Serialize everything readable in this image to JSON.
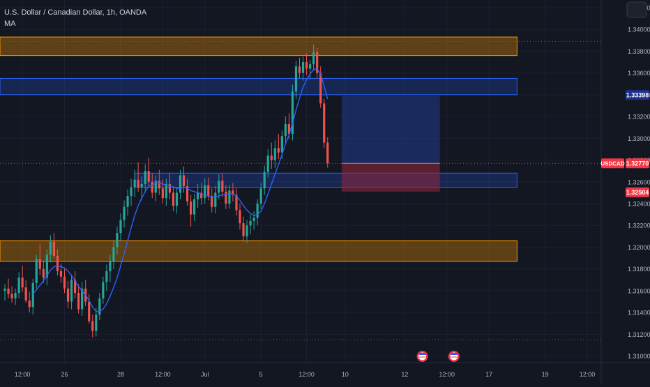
{
  "header": {
    "title": "U.S. Dollar / Canadian Dollar, 1h, OANDA",
    "indicator": "MA"
  },
  "chart_data": {
    "type": "candlestick",
    "symbol": "USDCAD",
    "ylim": [
      1.3094,
      1.3427
    ],
    "y_ticks": [
      "1.31000",
      "1.31200",
      "1.31400",
      "1.31600",
      "1.31800",
      "1.32000",
      "1.32200",
      "1.32400",
      "1.32600",
      "1.32800",
      "1.33000",
      "1.33200",
      "1.33400",
      "1.33600",
      "1.33800",
      "1.34000",
      "1.34200"
    ],
    "x_ticks": [
      {
        "label": "12:00",
        "bar": 5
      },
      {
        "label": "26",
        "bar": 17
      },
      {
        "label": "28",
        "bar": 33
      },
      {
        "label": "12:00",
        "bar": 45
      },
      {
        "label": "Jul",
        "bar": 57
      },
      {
        "label": "5",
        "bar": 73
      },
      {
        "label": "12:00",
        "bar": 86
      },
      {
        "label": "10",
        "bar": 97
      },
      {
        "label": "12",
        "bar": 114
      },
      {
        "label": "12:00",
        "bar": 126
      },
      {
        "label": "17",
        "bar": 138
      },
      {
        "label": "19",
        "bar": 154
      },
      {
        "label": "12:00",
        "bar": 166
      }
    ],
    "price_labels": [
      {
        "text": "1.33398",
        "value": 1.33398,
        "color": "#1e2f8c"
      },
      {
        "text": "USDCAD",
        "value": 1.3277,
        "color": "#f23645"
      },
      {
        "text": "1.32770",
        "value": 1.3277,
        "color": "#f23645"
      },
      {
        "text": "1.32504",
        "value": 1.32504,
        "color": "#f23645"
      }
    ],
    "zones": [
      {
        "kind": "supply",
        "from": 1.3376,
        "to": 1.3393,
        "start_bar": 0,
        "end_bar": 146,
        "color": "#ff9800"
      },
      {
        "kind": "demand",
        "from": 1.334,
        "to": 1.3355,
        "start_bar": 0,
        "end_bar": 146,
        "color": "#2962ff"
      },
      {
        "kind": "demand",
        "from": 1.3255,
        "to": 1.3268,
        "start_bar": 37,
        "end_bar": 146,
        "color": "#2962ff"
      },
      {
        "kind": "supply",
        "from": 1.3187,
        "to": 1.3206,
        "start_bar": 0,
        "end_bar": 146,
        "color": "#ff9800"
      }
    ],
    "position": {
      "entry": 1.3277,
      "target": 1.3339,
      "stop": 1.3251,
      "start_bar": 96,
      "end_bar": 124
    },
    "dotted_levels": [
      1.3389,
      1.3115
    ],
    "events_at_bars": [
      119,
      128
    ],
    "candles": [
      [
        1.316,
        1.3166,
        1.3151,
        1.3162
      ],
      [
        1.3162,
        1.3171,
        1.3153,
        1.3157
      ],
      [
        1.3157,
        1.3164,
        1.3149,
        1.3153
      ],
      [
        1.3153,
        1.3162,
        1.3147,
        1.3158
      ],
      [
        1.3158,
        1.3177,
        1.3153,
        1.3172
      ],
      [
        1.3172,
        1.3183,
        1.3159,
        1.3163
      ],
      [
        1.3163,
        1.317,
        1.3149,
        1.3151
      ],
      [
        1.3151,
        1.3159,
        1.314,
        1.3145
      ],
      [
        1.3145,
        1.3171,
        1.3138,
        1.3167
      ],
      [
        1.3167,
        1.3193,
        1.3162,
        1.3189
      ],
      [
        1.3189,
        1.3203,
        1.3174,
        1.318
      ],
      [
        1.318,
        1.3187,
        1.3167,
        1.3172
      ],
      [
        1.3172,
        1.3198,
        1.3165,
        1.3193
      ],
      [
        1.3193,
        1.3211,
        1.3186,
        1.3205
      ],
      [
        1.3205,
        1.3213,
        1.319,
        1.3192
      ],
      [
        1.3192,
        1.3198,
        1.3174,
        1.3178
      ],
      [
        1.3178,
        1.3185,
        1.3167,
        1.3173
      ],
      [
        1.3173,
        1.318,
        1.3158,
        1.3162
      ],
      [
        1.3162,
        1.3169,
        1.3144,
        1.315
      ],
      [
        1.315,
        1.3175,
        1.3143,
        1.317
      ],
      [
        1.317,
        1.3178,
        1.3153,
        1.3158
      ],
      [
        1.3158,
        1.3166,
        1.3139,
        1.3143
      ],
      [
        1.3143,
        1.3168,
        1.3137,
        1.3162
      ],
      [
        1.3162,
        1.317,
        1.3146,
        1.315
      ],
      [
        1.315,
        1.3157,
        1.313,
        1.3132
      ],
      [
        1.3132,
        1.3138,
        1.3117,
        1.3123
      ],
      [
        1.3123,
        1.3144,
        1.3118,
        1.3138
      ],
      [
        1.3138,
        1.3158,
        1.3133,
        1.3153
      ],
      [
        1.3153,
        1.3173,
        1.3148,
        1.3168
      ],
      [
        1.3168,
        1.3184,
        1.316,
        1.3178
      ],
      [
        1.3178,
        1.3193,
        1.3168,
        1.3187
      ],
      [
        1.3187,
        1.3206,
        1.318,
        1.32
      ],
      [
        1.32,
        1.3219,
        1.3193,
        1.3213
      ],
      [
        1.3213,
        1.3231,
        1.3206,
        1.3225
      ],
      [
        1.3225,
        1.3243,
        1.3218,
        1.3237
      ],
      [
        1.3237,
        1.3253,
        1.3229,
        1.3247
      ],
      [
        1.3247,
        1.3263,
        1.3238,
        1.3255
      ],
      [
        1.3255,
        1.3271,
        1.3246,
        1.3262
      ],
      [
        1.3262,
        1.3278,
        1.3251,
        1.3255
      ],
      [
        1.3255,
        1.3265,
        1.3243,
        1.3258
      ],
      [
        1.3258,
        1.3276,
        1.325,
        1.327
      ],
      [
        1.327,
        1.3282,
        1.3255,
        1.326
      ],
      [
        1.326,
        1.3268,
        1.3245,
        1.325
      ],
      [
        1.325,
        1.3266,
        1.3242,
        1.3261
      ],
      [
        1.3261,
        1.3271,
        1.3248,
        1.3254
      ],
      [
        1.3254,
        1.3262,
        1.324,
        1.3245
      ],
      [
        1.3245,
        1.3263,
        1.3238,
        1.3258
      ],
      [
        1.3258,
        1.3268,
        1.3244,
        1.325
      ],
      [
        1.325,
        1.3256,
        1.3233,
        1.3238
      ],
      [
        1.3238,
        1.3255,
        1.3231,
        1.325
      ],
      [
        1.325,
        1.3271,
        1.3244,
        1.3266
      ],
      [
        1.3266,
        1.3274,
        1.325,
        1.3256
      ],
      [
        1.3256,
        1.3263,
        1.3238,
        1.3242
      ],
      [
        1.3242,
        1.3248,
        1.3219,
        1.323
      ],
      [
        1.323,
        1.3249,
        1.3224,
        1.3244
      ],
      [
        1.3244,
        1.3258,
        1.3236,
        1.325
      ],
      [
        1.325,
        1.3259,
        1.3239,
        1.3245
      ],
      [
        1.3245,
        1.3263,
        1.324,
        1.3257
      ],
      [
        1.3257,
        1.3264,
        1.3243,
        1.3247
      ],
      [
        1.3247,
        1.3254,
        1.3232,
        1.3237
      ],
      [
        1.3237,
        1.3256,
        1.3231,
        1.325
      ],
      [
        1.325,
        1.3267,
        1.3244,
        1.3261
      ],
      [
        1.3261,
        1.3268,
        1.3246,
        1.3251
      ],
      [
        1.3251,
        1.3257,
        1.3235,
        1.324
      ],
      [
        1.324,
        1.3257,
        1.3235,
        1.3252
      ],
      [
        1.3252,
        1.3259,
        1.3242,
        1.3248
      ],
      [
        1.3248,
        1.3254,
        1.3229,
        1.3234
      ],
      [
        1.3234,
        1.324,
        1.3216,
        1.3222
      ],
      [
        1.3222,
        1.3228,
        1.3205,
        1.321
      ],
      [
        1.321,
        1.3225,
        1.3204,
        1.322
      ],
      [
        1.322,
        1.323,
        1.3212,
        1.3224
      ],
      [
        1.3224,
        1.3233,
        1.3216,
        1.3227
      ],
      [
        1.3227,
        1.3244,
        1.322,
        1.324
      ],
      [
        1.324,
        1.3259,
        1.3235,
        1.3254
      ],
      [
        1.3254,
        1.3275,
        1.3248,
        1.3269
      ],
      [
        1.3269,
        1.329,
        1.3264,
        1.3284
      ],
      [
        1.3284,
        1.3296,
        1.3272,
        1.328
      ],
      [
        1.328,
        1.3298,
        1.3273,
        1.3291
      ],
      [
        1.3291,
        1.3304,
        1.3281,
        1.3287
      ],
      [
        1.3287,
        1.3307,
        1.3281,
        1.3302
      ],
      [
        1.3302,
        1.332,
        1.3295,
        1.3313
      ],
      [
        1.3313,
        1.3323,
        1.3299,
        1.3304
      ],
      [
        1.3304,
        1.3349,
        1.3298,
        1.3343
      ],
      [
        1.3343,
        1.3371,
        1.3336,
        1.3366
      ],
      [
        1.3366,
        1.3374,
        1.3355,
        1.336
      ],
      [
        1.336,
        1.3375,
        1.3353,
        1.337
      ],
      [
        1.337,
        1.3378,
        1.3358,
        1.3364
      ],
      [
        1.3364,
        1.3372,
        1.3354,
        1.3368
      ],
      [
        1.3368,
        1.3386,
        1.3362,
        1.3379
      ],
      [
        1.3379,
        1.3383,
        1.3355,
        1.336
      ],
      [
        1.336,
        1.3366,
        1.3328,
        1.3332
      ],
      [
        1.3332,
        1.3336,
        1.3291,
        1.3296
      ],
      [
        1.3296,
        1.3301,
        1.3273,
        1.3277
      ]
    ],
    "ma": [
      null,
      null,
      null,
      null,
      null,
      null,
      null,
      null,
      1.3157,
      1.3161,
      1.3165,
      1.3169,
      1.3174,
      1.3179,
      1.3182,
      1.3183,
      1.3182,
      1.3181,
      1.3178,
      1.3174,
      1.3169,
      1.3164,
      1.316,
      1.3156,
      1.3151,
      1.3145,
      1.3141,
      1.3141,
      1.3143,
      1.3148,
      1.3155,
      1.3163,
      1.3172,
      1.3183,
      1.3194,
      1.3206,
      1.3218,
      1.3229,
      1.3238,
      1.3245,
      1.3251,
      1.3256,
      1.3257,
      1.3259,
      1.3259,
      1.3258,
      1.3257,
      1.3256,
      1.3255,
      1.3254,
      1.3254,
      1.3255,
      1.3254,
      1.3252,
      1.3251,
      1.325,
      1.3249,
      1.3248,
      1.3247,
      1.3246,
      1.3246,
      1.3247,
      1.3248,
      1.3249,
      1.3249,
      1.3249,
      1.3247,
      1.3243,
      1.3238,
      1.3234,
      1.3231,
      1.3229,
      1.323,
      1.3233,
      1.324,
      1.3249,
      1.3258,
      1.3267,
      1.3276,
      1.3285,
      1.3295,
      1.3303,
      1.3314,
      1.3326,
      1.3337,
      1.3347,
      1.3354,
      1.3359,
      1.3363,
      1.3364,
      1.3359,
      1.3348,
      1.3336
    ]
  }
}
